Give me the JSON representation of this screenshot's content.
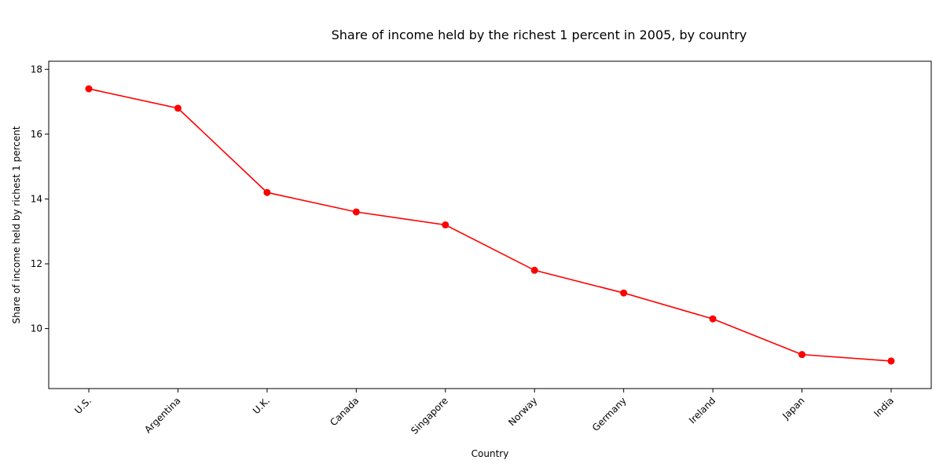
{
  "chart_data": {
    "type": "line",
    "title": "Share of income held by the richest 1 percent in 2005, by country",
    "xlabel": "Country",
    "ylabel": "Share of income held by richest 1 percent",
    "categories": [
      "U.S.",
      "Argentina",
      "U.K.",
      "Canada",
      "Singapore",
      "Norway",
      "Germany",
      "Ireland",
      "Japan",
      "India"
    ],
    "series": [
      {
        "values": [
          17.4,
          16.8,
          14.2,
          13.6,
          13.2,
          11.8,
          11.1,
          10.3,
          9.2,
          9.0
        ],
        "color": "#ff0000"
      }
    ],
    "ylim": [
      8.15,
      18.25
    ],
    "yticks": [
      10,
      12,
      14,
      16,
      18
    ],
    "grid": false,
    "legend": "none",
    "marker": "circle"
  }
}
